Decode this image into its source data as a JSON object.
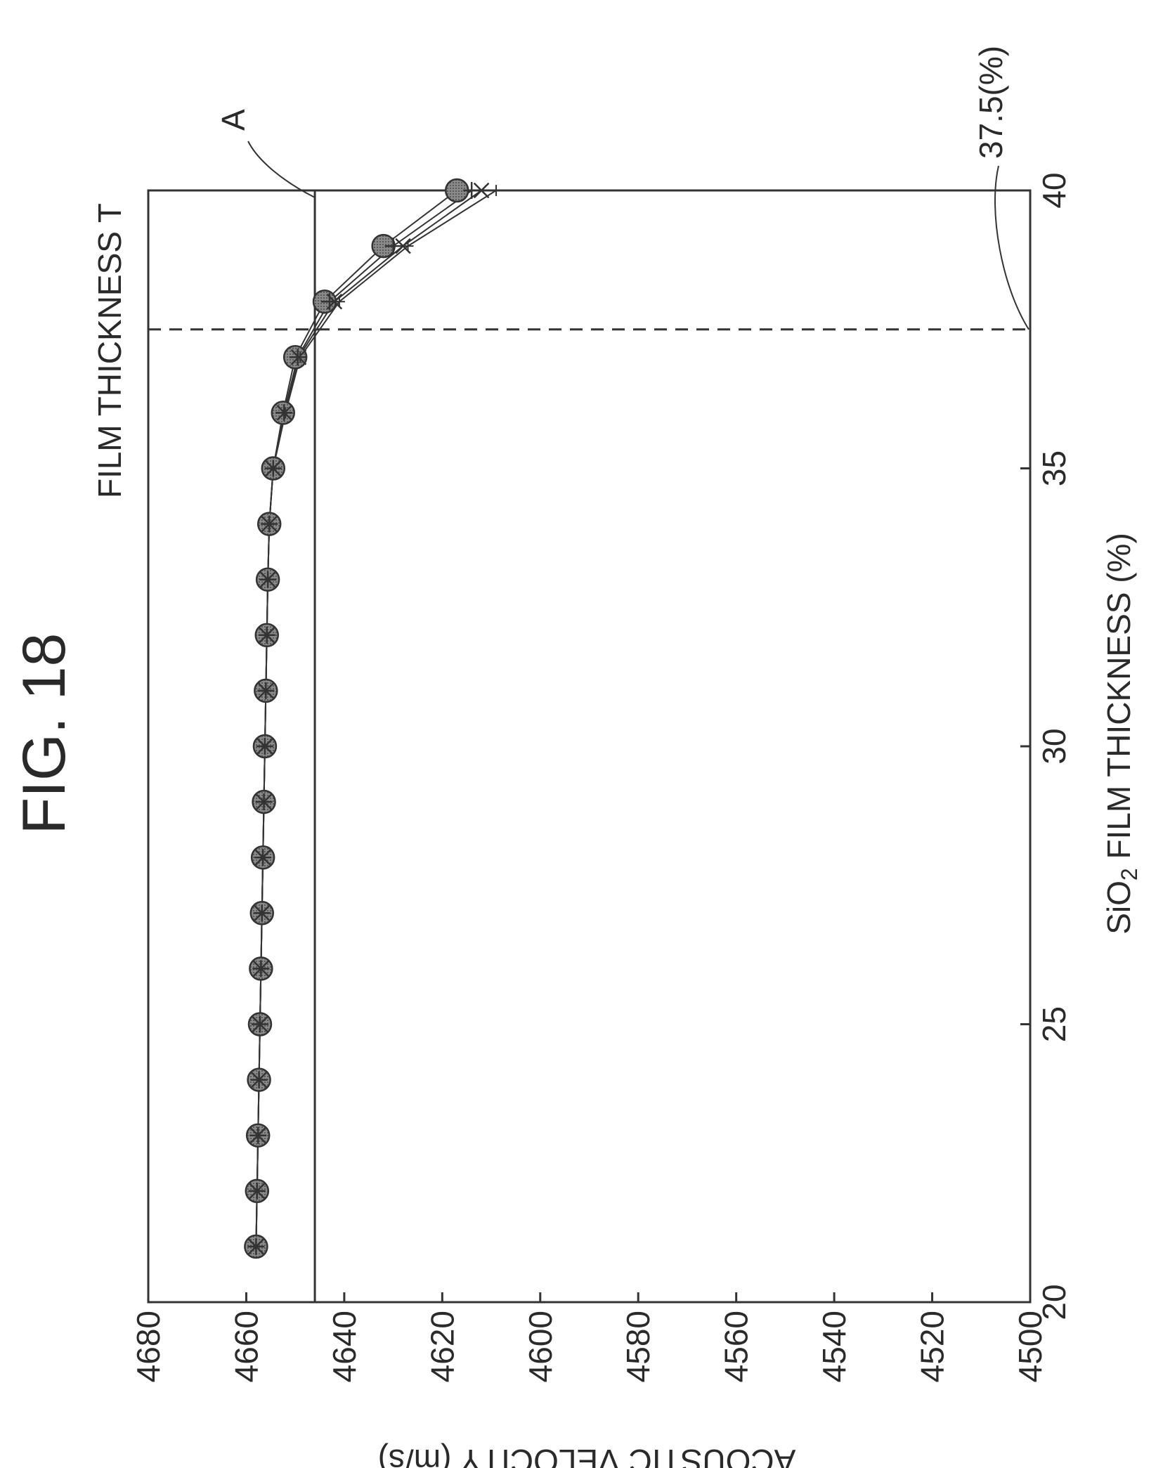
{
  "figure_title": "FIG. 18",
  "chart_data": {
    "type": "line",
    "title": "",
    "xlabel": "SiO2 FILM THICKNESS (%)",
    "xlabel_parts": {
      "pre": "SiO",
      "sub": "2",
      "post": " FILM THICKNESS (%)"
    },
    "ylabel": "ACOUSTIC VELOCITY (m/s)",
    "xlim": [
      20,
      40
    ],
    "ylim": [
      4500,
      4680
    ],
    "x_ticks": [
      20,
      25,
      30,
      35,
      40
    ],
    "y_ticks": [
      4500,
      4520,
      4540,
      4560,
      4580,
      4600,
      4620,
      4640,
      4660,
      4680
    ],
    "x_tick_labels": [
      "20",
      "25",
      "30",
      "35",
      "40"
    ],
    "y_tick_labels": [
      "4500",
      "4520",
      "4540",
      "4560",
      "4580",
      "4600",
      "4620",
      "4640",
      "4660",
      "4680"
    ],
    "grid": false,
    "reference_line": {
      "y": 4646,
      "label": "A"
    },
    "threshold_line": {
      "x": 37.5,
      "label": "37.5(%)"
    },
    "region_label": "FILM THICKNESS T",
    "series": [
      {
        "marker": "circle",
        "x": [
          21,
          22,
          23,
          24,
          25,
          26,
          27,
          28,
          29,
          30,
          31,
          32,
          33,
          34,
          35,
          36,
          37,
          38,
          39,
          40
        ],
        "values": [
          4658,
          4657.8,
          4657.6,
          4657.4,
          4657.2,
          4657,
          4656.8,
          4656.6,
          4656.4,
          4656.2,
          4656,
          4655.8,
          4655.6,
          4655.3,
          4654.5,
          4652.5,
          4650,
          4644,
          4632,
          4617
        ]
      },
      {
        "marker": "cross",
        "x": [
          21,
          22,
          23,
          24,
          25,
          26,
          27,
          28,
          29,
          30,
          31,
          32,
          33,
          34,
          35,
          36,
          37,
          38,
          39,
          40
        ],
        "values": [
          4658,
          4657.8,
          4657.6,
          4657.4,
          4657.2,
          4657,
          4656.8,
          4656.6,
          4656.4,
          4656.2,
          4656,
          4655.8,
          4655.6,
          4655.3,
          4654.5,
          4652.3,
          4649.5,
          4643,
          4630,
          4614
        ]
      },
      {
        "marker": "x",
        "x": [
          21,
          22,
          23,
          24,
          25,
          26,
          27,
          28,
          29,
          30,
          31,
          32,
          33,
          34,
          35,
          36,
          37,
          38,
          39,
          40
        ],
        "values": [
          4658,
          4657.8,
          4657.6,
          4657.4,
          4657.2,
          4657,
          4656.8,
          4656.6,
          4656.4,
          4656.2,
          4656,
          4655.8,
          4655.6,
          4655.3,
          4654.5,
          4652.2,
          4649.3,
          4642,
          4628,
          4612
        ]
      },
      {
        "marker": "plus",
        "x": [
          21,
          22,
          23,
          24,
          25,
          26,
          27,
          28,
          29,
          30,
          31,
          32,
          33,
          34,
          35,
          36,
          37,
          38,
          39,
          40
        ],
        "values": [
          4658,
          4657.8,
          4657.6,
          4657.4,
          4657.2,
          4657,
          4656.8,
          4656.6,
          4656.4,
          4656.2,
          4656,
          4655.8,
          4655.6,
          4655.3,
          4654.5,
          4652,
          4649,
          4641,
          4627,
          4609
        ]
      }
    ]
  }
}
